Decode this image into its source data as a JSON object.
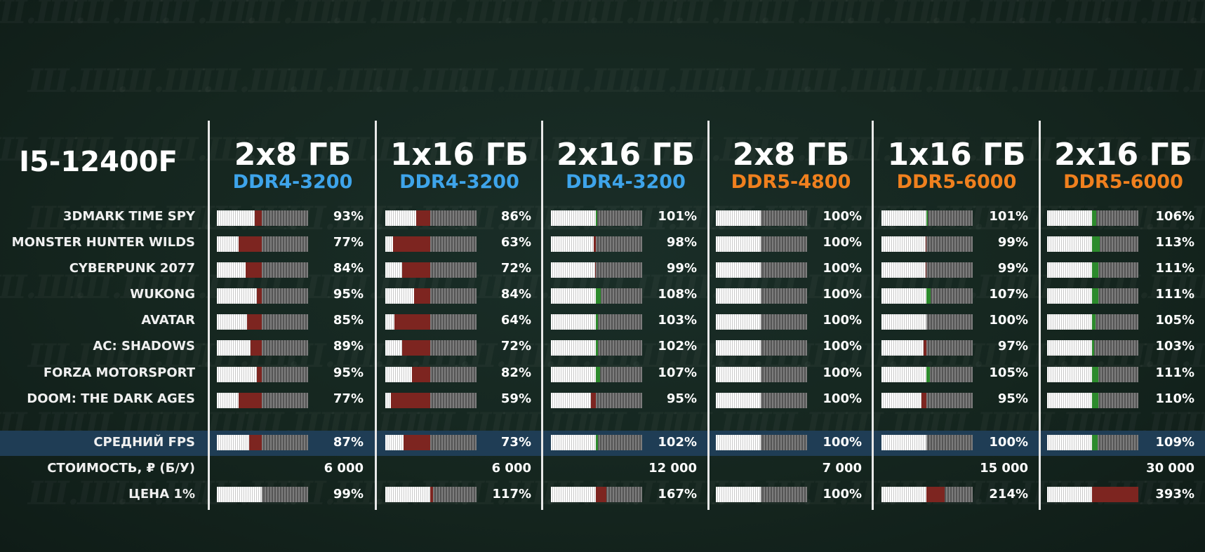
{
  "cpu": "I5-12400F",
  "watermark": "Ш.",
  "colors": {
    "ddr4": "#3ea4ea",
    "ddr5": "#f0801e",
    "loss": "#7d2520",
    "gain": "#2c8a2c"
  },
  "columns": [
    {
      "size": "2x8 ГБ",
      "type": "DDR4-3200",
      "gen": "ddr4"
    },
    {
      "size": "1x16 ГБ",
      "type": "DDR4-3200",
      "gen": "ddr4"
    },
    {
      "size": "2x16 ГБ",
      "type": "DDR4-3200",
      "gen": "ddr4"
    },
    {
      "size": "2x8 ГБ",
      "type": "DDR5-4800",
      "gen": "ddr5"
    },
    {
      "size": "1x16 ГБ",
      "type": "DDR5-6000",
      "gen": "ddr5"
    },
    {
      "size": "2x16 ГБ",
      "type": "DDR5-6000",
      "gen": "ddr5"
    }
  ],
  "rows": [
    {
      "label": "3DMARK TIME SPY",
      "pct": [
        "93%",
        "86%",
        "101%",
        "100%",
        "101%",
        "106%"
      ],
      "values": [
        93,
        86,
        101,
        100,
        101,
        106
      ]
    },
    {
      "label": "MONSTER HUNTER WILDS",
      "pct": [
        "77%",
        "63%",
        "98%",
        "100%",
        "99%",
        "113%"
      ],
      "values": [
        77,
        63,
        98,
        100,
        99,
        113
      ]
    },
    {
      "label": "CYBERPUNK 2077",
      "pct": [
        "84%",
        "72%",
        "99%",
        "100%",
        "99%",
        "111%"
      ],
      "values": [
        84,
        72,
        99,
        100,
        99,
        111
      ]
    },
    {
      "label": "WUKONG",
      "pct": [
        "95%",
        "84%",
        "108%",
        "100%",
        "107%",
        "111%"
      ],
      "values": [
        95,
        84,
        108,
        100,
        107,
        111
      ]
    },
    {
      "label": "AVATAR",
      "pct": [
        "85%",
        "64%",
        "103%",
        "100%",
        "100%",
        "105%"
      ],
      "values": [
        85,
        64,
        103,
        100,
        100,
        105
      ]
    },
    {
      "label": "AC: SHADOWS",
      "pct": [
        "89%",
        "72%",
        "102%",
        "100%",
        "97%",
        "103%"
      ],
      "values": [
        89,
        72,
        102,
        100,
        97,
        103
      ]
    },
    {
      "label": "FORZA MOTORSPORT",
      "pct": [
        "95%",
        "82%",
        "107%",
        "100%",
        "105%",
        "111%"
      ],
      "values": [
        95,
        82,
        107,
        100,
        105,
        111
      ]
    },
    {
      "label": "DOOM: THE DARK AGES",
      "pct": [
        "77%",
        "59%",
        "95%",
        "100%",
        "95%",
        "110%"
      ],
      "values": [
        77,
        59,
        95,
        100,
        95,
        110
      ]
    }
  ],
  "avg": {
    "label": "СРЕДНИЙ FPS",
    "pct": [
      "87%",
      "73%",
      "102%",
      "100%",
      "100%",
      "109%"
    ],
    "values": [
      87,
      73,
      102,
      100,
      100,
      109
    ]
  },
  "cost": {
    "label": "СТОИМОСТЬ, ₽ (Б/У)",
    "values": [
      "6 000",
      "6 000",
      "12 000",
      "7 000",
      "15 000",
      "30 000"
    ]
  },
  "price": {
    "label": "ЦЕНА 1%",
    "pct": [
      "99%",
      "117%",
      "167%",
      "100%",
      "214%",
      "393%"
    ],
    "values": [
      99,
      117,
      167,
      100,
      214,
      393
    ]
  }
}
